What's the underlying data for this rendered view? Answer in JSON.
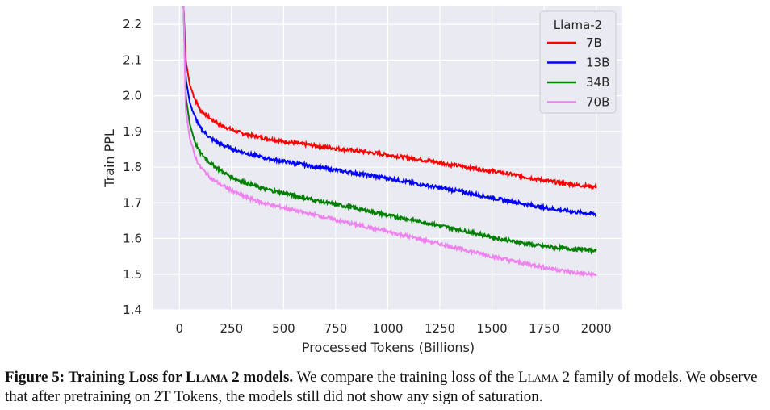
{
  "chart_data": {
    "type": "line",
    "xlabel": "Processed Tokens (Billions)",
    "ylabel": "Train PPL",
    "xlim": [
      -125,
      2125
    ],
    "ylim": [
      1.4,
      2.25
    ],
    "xticks": [
      0,
      250,
      500,
      750,
      1000,
      1250,
      1500,
      1750,
      2000
    ],
    "yticks": [
      1.4,
      1.5,
      1.6,
      1.7,
      1.8,
      1.9,
      2.0,
      2.1,
      2.2
    ],
    "xtick_labels": [
      "0",
      "250",
      "500",
      "750",
      "1000",
      "1250",
      "1500",
      "1750",
      "2000"
    ],
    "ytick_labels": [
      "1.4",
      "1.5",
      "1.6",
      "1.7",
      "1.8",
      "1.9",
      "2.0",
      "2.1",
      "2.2"
    ],
    "grid": true,
    "legend": {
      "title": "Llama-2",
      "position": "top-right"
    },
    "series": [
      {
        "name": "7B",
        "color": "#ff0000",
        "x": [
          20,
          30,
          50,
          75,
          100,
          150,
          200,
          250,
          300,
          400,
          500,
          600,
          700,
          800,
          900,
          1000,
          1100,
          1200,
          1300,
          1400,
          1500,
          1600,
          1700,
          1800,
          1900,
          2000
        ],
        "y": [
          2.25,
          2.1,
          2.03,
          1.99,
          1.96,
          1.935,
          1.917,
          1.905,
          1.895,
          1.882,
          1.872,
          1.864,
          1.856,
          1.849,
          1.842,
          1.834,
          1.826,
          1.817,
          1.807,
          1.798,
          1.789,
          1.779,
          1.768,
          1.758,
          1.75,
          1.745
        ]
      },
      {
        "name": "13B",
        "color": "#0000ff",
        "x": [
          20,
          30,
          50,
          75,
          100,
          150,
          200,
          250,
          300,
          400,
          500,
          600,
          700,
          800,
          900,
          1000,
          1100,
          1200,
          1300,
          1400,
          1500,
          1600,
          1700,
          1800,
          1900,
          2000
        ],
        "y": [
          2.25,
          2.05,
          1.98,
          1.94,
          1.91,
          1.88,
          1.864,
          1.852,
          1.842,
          1.827,
          1.816,
          1.806,
          1.796,
          1.787,
          1.778,
          1.769,
          1.758,
          1.747,
          1.737,
          1.726,
          1.714,
          1.703,
          1.692,
          1.682,
          1.674,
          1.668
        ]
      },
      {
        "name": "34B",
        "color": "#008000",
        "x": [
          20,
          30,
          50,
          75,
          100,
          150,
          200,
          250,
          300,
          400,
          500,
          600,
          700,
          800,
          900,
          1000,
          1100,
          1200,
          1300,
          1400,
          1500,
          1600,
          1700,
          1800,
          1900,
          2000
        ],
        "y": [
          2.25,
          2.0,
          1.92,
          1.87,
          1.84,
          1.81,
          1.79,
          1.772,
          1.76,
          1.74,
          1.727,
          1.714,
          1.701,
          1.69,
          1.678,
          1.665,
          1.654,
          1.642,
          1.63,
          1.617,
          1.604,
          1.592,
          1.582,
          1.575,
          1.57,
          1.567
        ]
      },
      {
        "name": "70B",
        "color": "#ee82ee",
        "x": [
          20,
          30,
          50,
          75,
          100,
          150,
          200,
          250,
          300,
          400,
          500,
          600,
          700,
          800,
          900,
          1000,
          1100,
          1200,
          1300,
          1400,
          1500,
          1600,
          1700,
          1800,
          1900,
          2000
        ],
        "y": [
          2.25,
          1.96,
          1.88,
          1.83,
          1.8,
          1.77,
          1.75,
          1.735,
          1.72,
          1.7,
          1.686,
          1.672,
          1.66,
          1.645,
          1.632,
          1.619,
          1.606,
          1.592,
          1.578,
          1.564,
          1.55,
          1.537,
          1.525,
          1.514,
          1.504,
          1.498
        ]
      }
    ]
  },
  "caption": {
    "figure_label": "Figure 5: Training Loss for",
    "model_name": "Llama 2",
    "label_suffix": "models.",
    "text_part1": "We compare the training loss of the",
    "model_name_2": "Llama 2",
    "text_part2": "family of models. We observe that after pretraining on 2T Tokens, the models still did not show any sign of saturation."
  }
}
